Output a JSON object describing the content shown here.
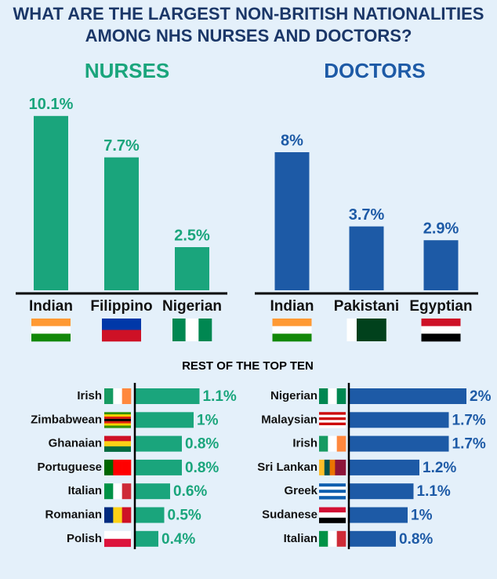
{
  "title": "WHAT ARE THE LARGEST NON-BRITISH NATIONALITIES AMONG NHS NURSES AND DOCTORS?",
  "section_title": "REST OF THE TOP TEN",
  "chart_data": [
    {
      "type": "bar",
      "title": "NURSES",
      "color": "#1aa57c",
      "categories": [
        "Indian",
        "Filippino",
        "Nigerian"
      ],
      "values": [
        10.1,
        7.7,
        2.5
      ],
      "value_labels": [
        "10.1%",
        "7.7%",
        "2.5%"
      ],
      "ylim": [
        0,
        12
      ]
    },
    {
      "type": "bar",
      "title": "DOCTORS",
      "color": "#1d5aa6",
      "categories": [
        "Indian",
        "Pakistani",
        "Egyptian"
      ],
      "values": [
        8,
        3.7,
        2.9
      ],
      "value_labels": [
        "8%",
        "3.7%",
        "2.9%"
      ],
      "ylim": [
        0,
        12
      ]
    },
    {
      "type": "bar",
      "horizontal": true,
      "color": "#1aa57c",
      "categories": [
        "Irish",
        "Zimbabwean",
        "Ghanaian",
        "Portuguese",
        "Italian",
        "Romanian",
        "Polish"
      ],
      "values": [
        1.1,
        1,
        0.8,
        0.8,
        0.6,
        0.5,
        0.4
      ],
      "value_labels": [
        "1.1%",
        "1%",
        "0.8%",
        "0.8%",
        "0.6%",
        "0.5%",
        "0.4%"
      ],
      "xlim": [
        0,
        2
      ]
    },
    {
      "type": "bar",
      "horizontal": true,
      "color": "#1d5aa6",
      "categories": [
        "Nigerian",
        "Malaysian",
        "Irish",
        "Sri Lankan",
        "Greek",
        "Sudanese",
        "Italian"
      ],
      "values": [
        2,
        1.7,
        1.7,
        1.2,
        1.1,
        1,
        0.8
      ],
      "value_labels": [
        "2%",
        "1.7%",
        "1.7%",
        "1.2%",
        "1.1%",
        "1%",
        "0.8%"
      ],
      "xlim": [
        0,
        2
      ]
    }
  ]
}
